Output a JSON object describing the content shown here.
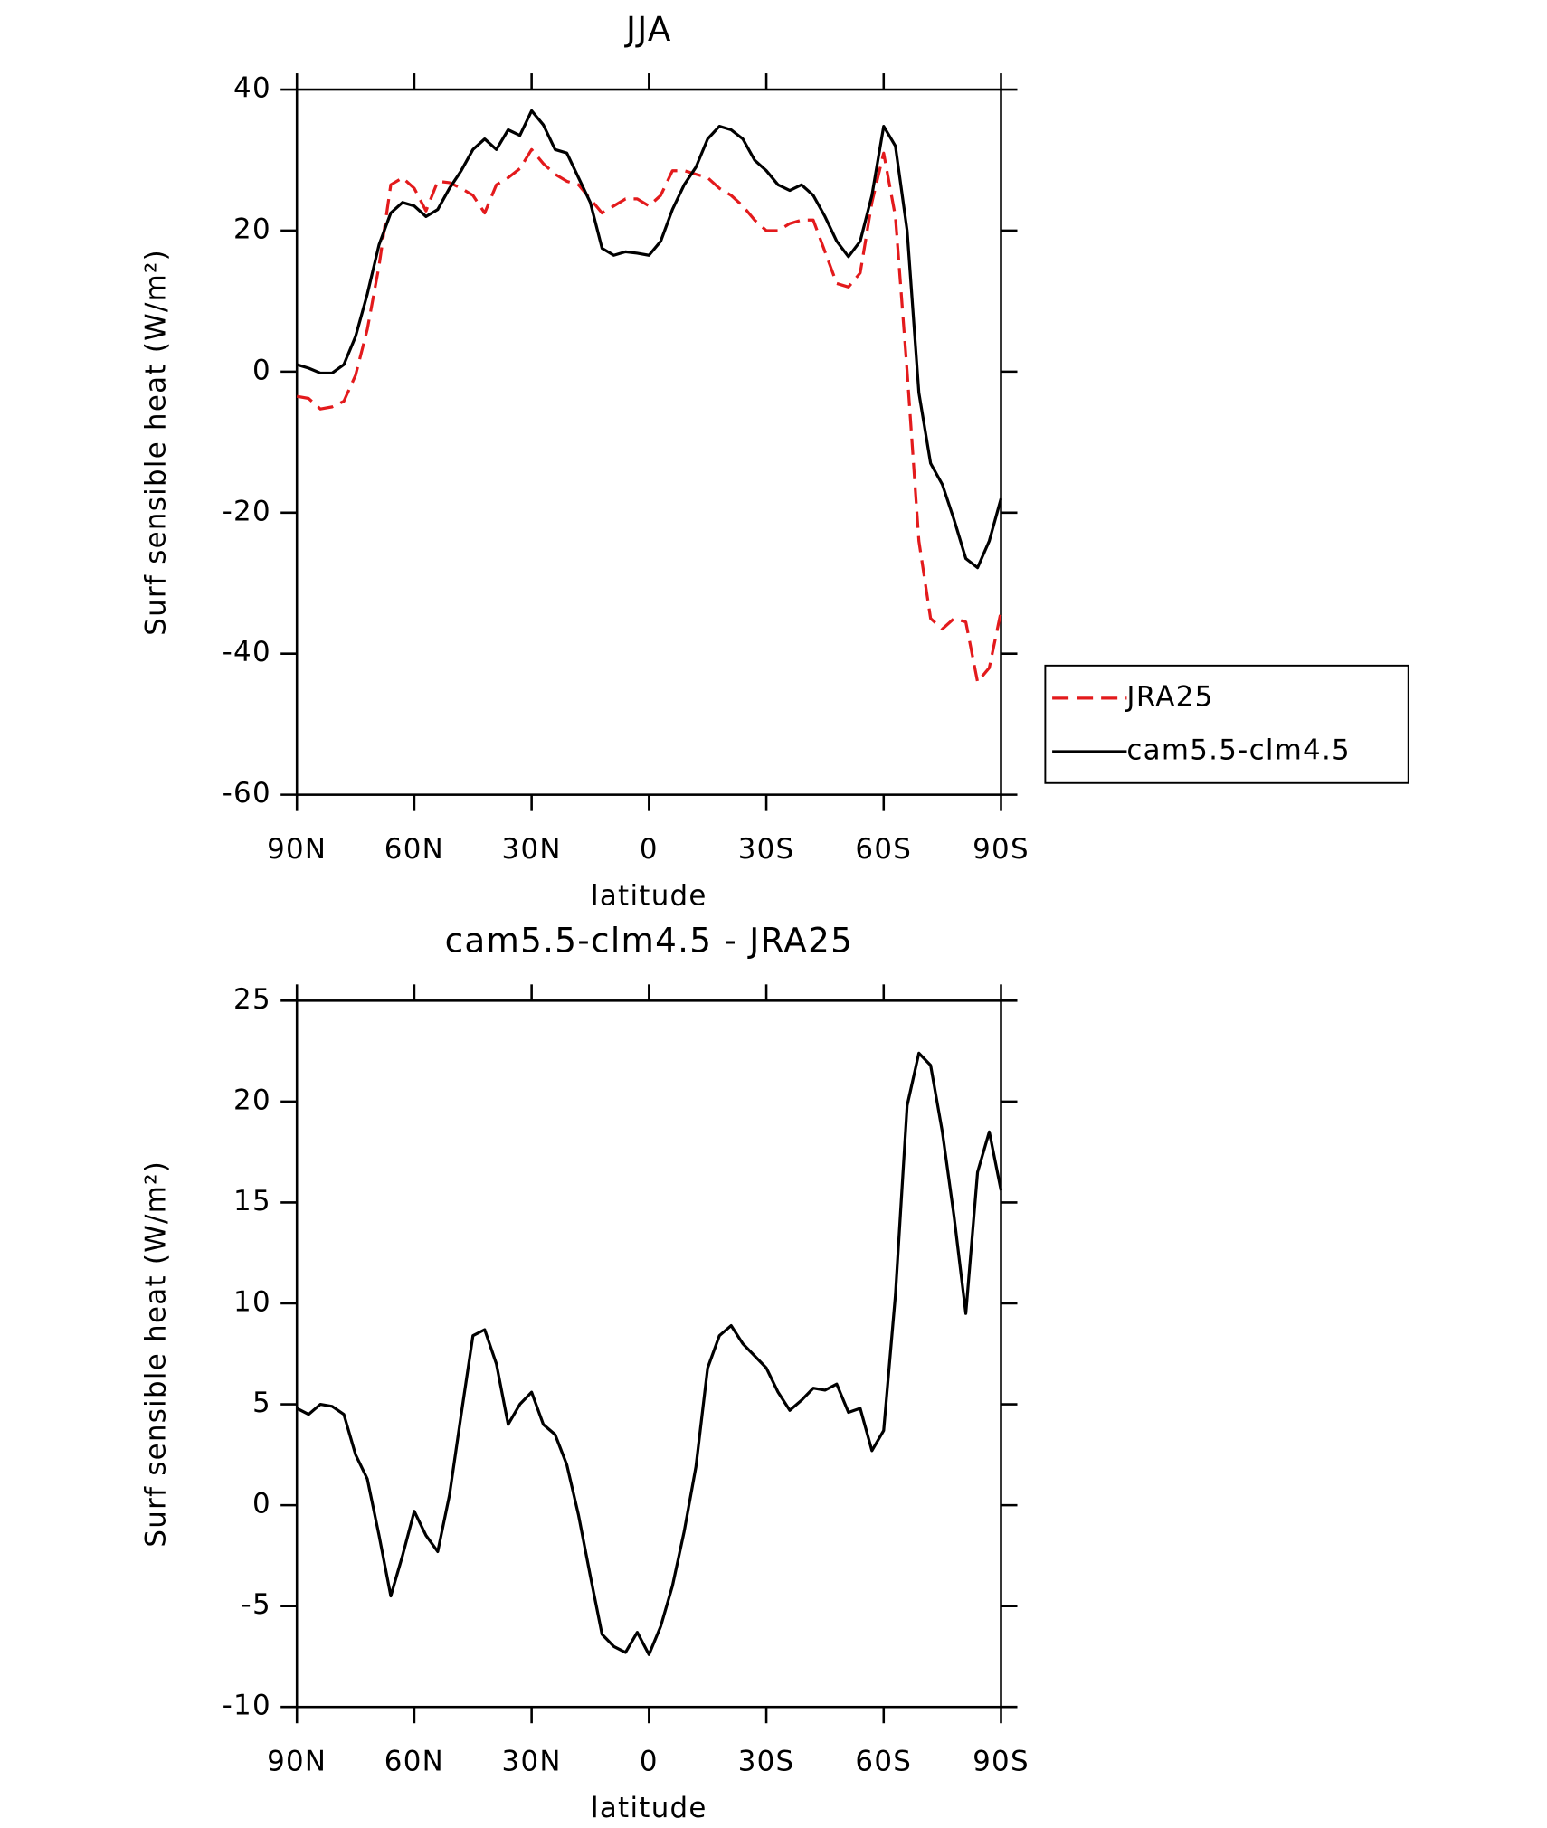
{
  "chart_data": [
    {
      "type": "line",
      "title": "JJA",
      "xlabel": "latitude",
      "ylabel": "Surf sensible heat (W/m²)",
      "x": [
        90,
        87,
        84,
        81,
        78,
        75,
        72,
        69,
        66,
        63,
        60,
        57,
        54,
        51,
        48,
        45,
        42,
        39,
        36,
        33,
        30,
        27,
        24,
        21,
        18,
        15,
        12,
        9,
        6,
        3,
        0,
        -3,
        -6,
        -9,
        -12,
        -15,
        -18,
        -21,
        -24,
        -27,
        -30,
        -33,
        -36,
        -39,
        -42,
        -45,
        -48,
        -51,
        -54,
        -57,
        -60,
        -63,
        -66,
        -69,
        -72,
        -75,
        -78,
        -81,
        -84,
        -87,
        -90
      ],
      "series": [
        {
          "name": "JRA25",
          "color": "#e31a1c",
          "dash": true,
          "values": [
            -3.5,
            -3.8,
            -5.3,
            -5,
            -4.2,
            -0.5,
            6,
            15,
            26.5,
            27.5,
            26,
            22.8,
            27,
            26.8,
            26,
            25,
            22.5,
            26.5,
            27.5,
            28.8,
            31.5,
            29.5,
            28,
            27,
            26.5,
            24.5,
            22.5,
            23.5,
            24.5,
            24.5,
            23.5,
            25,
            28.5,
            28.5,
            28,
            27.5,
            26,
            25,
            23.5,
            21.5,
            20,
            20,
            21,
            21.5,
            21.5,
            17,
            12.5,
            12,
            14,
            24,
            31,
            22,
            0,
            -24,
            -35,
            -36.5,
            -35,
            -35.5,
            -44,
            -42,
            -34
          ]
        },
        {
          "name": "cam5.5-clm4.5",
          "color": "#000000",
          "dash": false,
          "values": [
            1,
            0.5,
            -0.2,
            -0.2,
            1,
            5,
            11,
            18,
            22.5,
            24,
            23.5,
            22,
            23,
            26,
            28.5,
            31.5,
            33,
            31.5,
            34.3,
            33.5,
            37,
            35,
            31.5,
            31,
            27.5,
            24,
            17.5,
            16.5,
            17,
            16.8,
            16.5,
            18.5,
            23,
            26.5,
            29,
            33,
            34.8,
            34.3,
            33,
            30,
            28.5,
            26.5,
            25.7,
            26.5,
            25,
            22,
            18.5,
            16.3,
            18.5,
            25,
            34.8,
            32,
            20,
            -3,
            -13,
            -16,
            -21,
            -26.5,
            -27.8,
            -24,
            -18
          ]
        }
      ],
      "xlim": [
        90,
        -90
      ],
      "xticks": [
        {
          "value": 90,
          "label": "90N"
        },
        {
          "value": 60,
          "label": "60N"
        },
        {
          "value": 30,
          "label": "30N"
        },
        0,
        {
          "value": -30,
          "label": "30S"
        },
        {
          "value": -60,
          "label": "60S"
        },
        {
          "value": -90,
          "label": "90S"
        }
      ],
      "ylim": [
        -60,
        40
      ],
      "yticks": [
        -60,
        -40,
        -20,
        0,
        20,
        40
      ],
      "legend": "right"
    },
    {
      "type": "line",
      "title": "cam5.5-clm4.5 - JRA25",
      "xlabel": "latitude",
      "ylabel": "Surf sensible heat (W/m²)",
      "x": [
        90,
        87,
        84,
        81,
        78,
        75,
        72,
        69,
        66,
        63,
        60,
        57,
        54,
        51,
        48,
        45,
        42,
        39,
        36,
        33,
        30,
        27,
        24,
        21,
        18,
        15,
        12,
        9,
        6,
        3,
        0,
        -3,
        -6,
        -9,
        -12,
        -15,
        -18,
        -21,
        -24,
        -27,
        -30,
        -33,
        -36,
        -39,
        -42,
        -45,
        -48,
        -51,
        -54,
        -57,
        -60,
        -63,
        -66,
        -69,
        -72,
        -75,
        -78,
        -81,
        -84,
        -87,
        -90
      ],
      "series": [
        {
          "color": "#000000",
          "dash": false,
          "values": [
            4.8,
            4.5,
            5,
            4.9,
            4.5,
            2.5,
            1.3,
            -1.5,
            -4.5,
            -2.5,
            -0.3,
            -1.5,
            -2.3,
            0.5,
            4.5,
            8.4,
            8.7,
            7,
            4,
            5,
            5.6,
            4,
            3.5,
            2,
            -0.5,
            -3.5,
            -6.4,
            -7,
            -7.3,
            -6.3,
            -7.4,
            -6,
            -4,
            -1.3,
            1.9,
            6.8,
            8.4,
            8.9,
            8,
            7.4,
            6.8,
            5.6,
            4.7,
            5.2,
            5.8,
            5.7,
            6,
            4.6,
            4.8,
            2.7,
            3.7,
            10.4,
            19.8,
            22.4,
            21.8,
            18.5,
            14.3,
            9.5,
            16.5,
            18.5,
            15.6
          ]
        }
      ],
      "xlim": [
        90,
        -90
      ],
      "xticks": [
        {
          "value": 90,
          "label": "90N"
        },
        {
          "value": 60,
          "label": "60N"
        },
        {
          "value": 30,
          "label": "30N"
        },
        0,
        {
          "value": -30,
          "label": "30S"
        },
        {
          "value": -60,
          "label": "60S"
        },
        {
          "value": -90,
          "label": "90S"
        }
      ],
      "ylim": [
        -10,
        25
      ],
      "yticks": [
        -10,
        -5,
        0,
        5,
        10,
        15,
        20,
        25
      ]
    }
  ]
}
